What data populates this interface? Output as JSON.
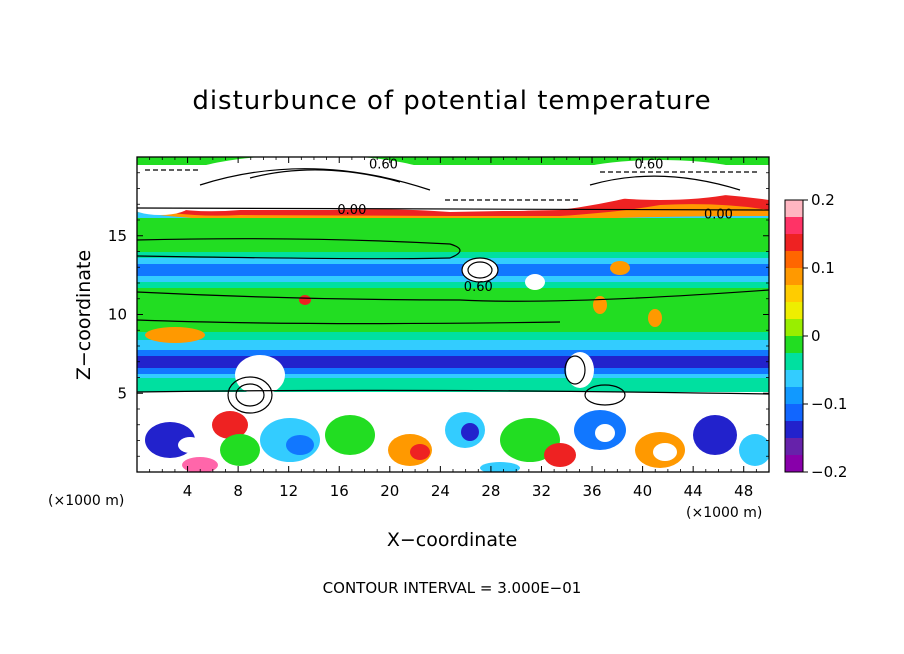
{
  "chart_data": {
    "type": "heatmap",
    "title": "disturbunce of potential temperature",
    "xlabel": "X−coordinate",
    "ylabel": "Z−coordinate",
    "x_unit_left": "(×1000 m)",
    "x_unit_right": "(×1000 m)",
    "xlim": [
      0,
      50
    ],
    "ylim": [
      0,
      20
    ],
    "xticks": [
      4,
      8,
      12,
      16,
      20,
      24,
      28,
      32,
      36,
      40,
      44,
      48
    ],
    "xtick_labels": [
      "4",
      "8",
      "12",
      "16",
      "20",
      "24",
      "28",
      "32",
      "36",
      "40",
      "44",
      "48"
    ],
    "yticks": [
      5,
      10,
      15
    ],
    "ytick_labels": [
      "5",
      "10",
      "15"
    ],
    "colorbar": {
      "range": [
        -0.2,
        0.2
      ],
      "ticks": [
        0.2,
        0.1,
        0,
        -0.1,
        -0.2
      ],
      "tick_labels": [
        "0.2",
        "0.1",
        "0",
        "−0.1",
        "−0.2"
      ]
    },
    "contour_labels": [
      {
        "text": "0.60",
        "x": 19.5,
        "z": 19.6
      },
      {
        "text": "0.60",
        "x": 40.5,
        "z": 19.6
      },
      {
        "text": "0.00",
        "x": 17.0,
        "z": 16.7
      },
      {
        "text": "0.00",
        "x": 46.0,
        "z": 16.4
      },
      {
        "text": "0.60",
        "x": 27.0,
        "z": 11.8
      }
    ],
    "footer": "CONTOUR INTERVAL = 3.000E−01"
  }
}
